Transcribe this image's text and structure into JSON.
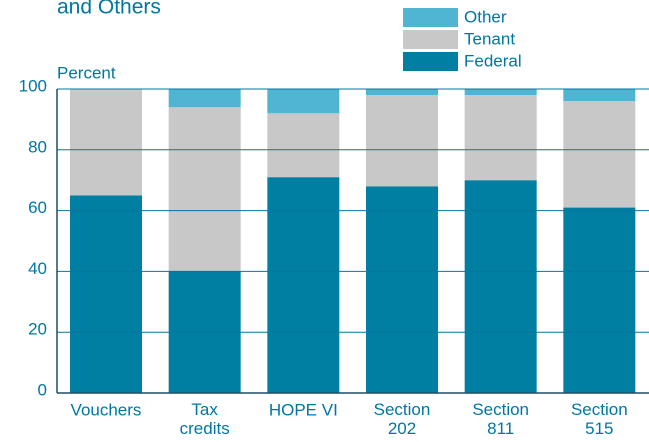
{
  "chart_data": {
    "type": "stacked_bar",
    "title": "and Others",
    "ylabel": "Percent",
    "categories": [
      "Vouchers",
      "Tax\ncredits",
      "HOPE VI",
      "Section\n202",
      "Section\n811",
      "Section\n515"
    ],
    "series": [
      {
        "name": "Federal",
        "color": "#007fa3",
        "values": [
          65,
          40,
          71,
          68,
          70,
          61
        ]
      },
      {
        "name": "Tenant",
        "color": "#c8c8c8",
        "values": [
          35,
          54,
          21,
          30,
          28,
          35
        ]
      },
      {
        "name": "Other",
        "color": "#4fb5d3",
        "values": [
          0,
          6,
          8,
          2,
          2,
          4
        ]
      }
    ],
    "ylim": [
      0,
      100
    ],
    "yticks": [
      0,
      20,
      40,
      60,
      80,
      100
    ],
    "grid": true,
    "legend": "top-right"
  }
}
